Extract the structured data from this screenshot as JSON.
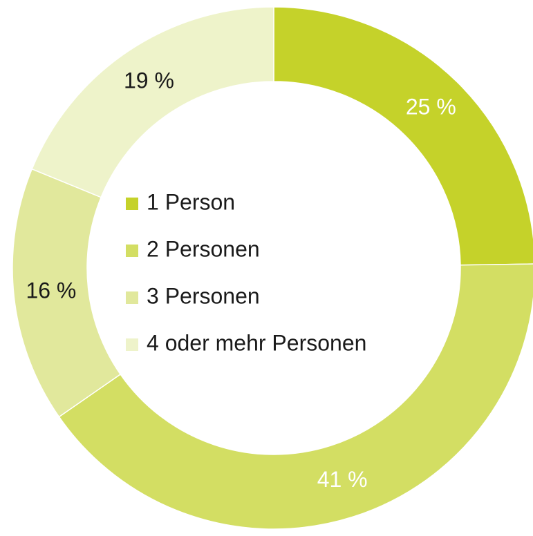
{
  "chart_data": {
    "type": "donut",
    "categories": [
      "1 Person",
      "2 Personen",
      "3 Personen",
      "4 oder mehr Personen"
    ],
    "values": [
      25,
      41,
      16,
      19
    ],
    "value_labels": [
      "25 %",
      "41 %",
      "16 %",
      "19 %"
    ],
    "colors": [
      "#c5d22a",
      "#d3de63",
      "#e1e89c",
      "#eef3ca"
    ],
    "label_colors": [
      "#ffffff",
      "#ffffff",
      "#1a1a1a",
      "#1a1a1a"
    ],
    "legend": "center"
  }
}
